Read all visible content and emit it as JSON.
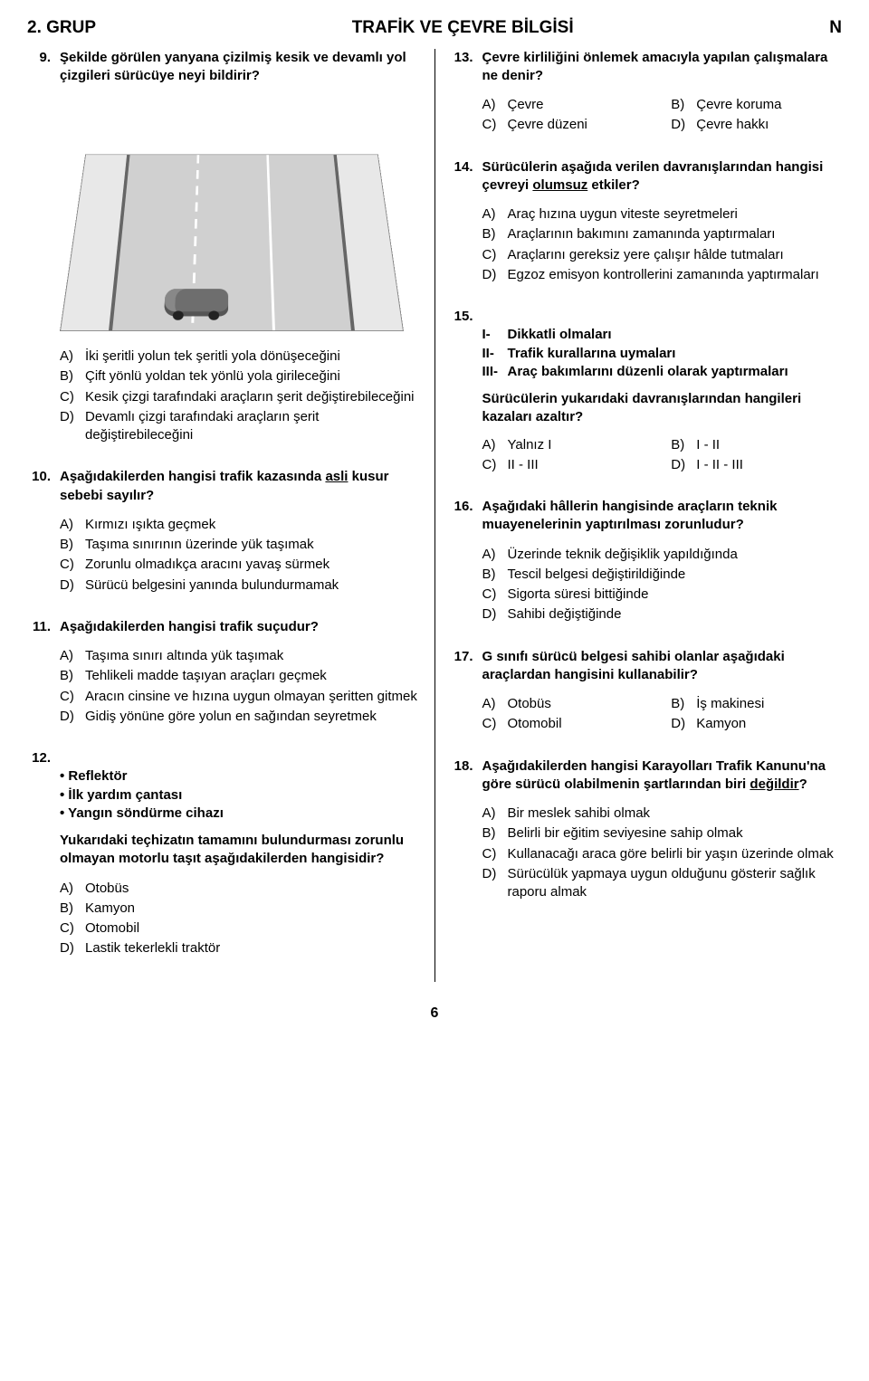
{
  "header": {
    "group": "2. GRUP",
    "title": "TRAFİK VE ÇEVRE BİLGİSİ",
    "code": "N"
  },
  "page_number": "6",
  "q9": {
    "num": "9.",
    "stem": "Şekilde görülen yanyana çizilmiş kesik ve devamlı yol çizgileri sürücüye neyi bildirir?",
    "A": "İki şeritli yolun tek şeritli yola dönüşeceğini",
    "B": "Çift yönlü yoldan tek yönlü yola girileceğini",
    "C": "Kesik çizgi tarafındaki araçların şerit değiştirebileceğini",
    "D": "Devamlı çizgi tarafındaki araçların şerit değiştirebileceğini"
  },
  "q10": {
    "num": "10.",
    "stem_pre": "Aşağıdakilerden hangisi trafik kazasında ",
    "stem_u": "asli",
    "stem_post": " kusur sebebi sayılır?",
    "A": "Kırmızı ışıkta geçmek",
    "B": "Taşıma sınırının üzerinde yük taşımak",
    "C": "Zorunlu olmadıkça aracını yavaş sürmek",
    "D": "Sürücü belgesini yanında bulundurmamak"
  },
  "q11": {
    "num": "11.",
    "stem": "Aşağıdakilerden hangisi trafik suçudur?",
    "A": "Taşıma sınırı altında yük taşımak",
    "B": "Tehlikeli madde taşıyan araçları geçmek",
    "C": "Aracın cinsine ve hızına uygun olmayan şeritten gitmek",
    "D": "Gidiş yönüne göre yolun en sağından seyretmek"
  },
  "q12": {
    "num": "12.",
    "b1": "Reflektör",
    "b2": "İlk yardım çantası",
    "b3": "Yangın söndürme cihazı",
    "follow_pre": "Yukarıdaki teçhizatın ",
    "follow_u1": "tamamını",
    "follow_mid": " bulundurması zorunlu ",
    "follow_u2": "olmayan",
    "follow_post": " motorlu taşıt aşağıdakilerden hangisidir?",
    "A": "Otobüs",
    "B": "Kamyon",
    "C": "Otomobil",
    "D": "Lastik tekerlekli traktör"
  },
  "q13": {
    "num": "13.",
    "stem": "Çevre kirliliğini önlemek amacıyla yapılan çalışmalara ne denir?",
    "A": "Çevre",
    "B": "Çevre koruma",
    "C": "Çevre düzeni",
    "D": "Çevre hakkı"
  },
  "q14": {
    "num": "14.",
    "stem_pre": "Sürücülerin aşağıda verilen davranışlarından hangisi çevreyi ",
    "stem_u": "olumsuz",
    "stem_post": " etkiler?",
    "A": "Araç hızına uygun viteste seyretmeleri",
    "B": "Araçlarının bakımını zamanında yaptırmaları",
    "C": "Araçlarını gereksiz yere çalışır hâlde tutmaları",
    "D": "Egzoz emisyon kontrollerini zamanında yaptırmaları"
  },
  "q15": {
    "num": "15.",
    "r1n": "I-",
    "r1": "Dikkatli olmaları",
    "r2n": "II-",
    "r2": "Trafik kurallarına uymaları",
    "r3n": "III-",
    "r3": "Araç bakımlarını düzenli olarak yaptırmaları",
    "follow": "Sürücülerin yukarıdaki davranışlarından hangileri kazaları azaltır?",
    "A": "Yalnız I",
    "B": "I - II",
    "C": "II - III",
    "D": "I - II - III"
  },
  "q16": {
    "num": "16.",
    "stem": "Aşağıdaki hâllerin hangisinde araçların teknik muayenelerinin yaptırılması zorunludur?",
    "A": "Üzerinde teknik değişiklik yapıldığında",
    "B": "Tescil belgesi değiştirildiğinde",
    "C": "Sigorta süresi bittiğinde",
    "D": "Sahibi değiştiğinde"
  },
  "q17": {
    "num": "17.",
    "stem": "G sınıfı sürücü belgesi sahibi olanlar aşağıdaki araçlardan hangisini kullanabilir?",
    "A": "Otobüs",
    "B": "İş makinesi",
    "C": "Otomobil",
    "D": "Kamyon"
  },
  "q18": {
    "num": "18.",
    "stem_pre": "Aşağıdakilerden hangisi Karayolları Trafik Kanunu'na göre sürücü olabilmenin şartlarından biri ",
    "stem_u": "değildir",
    "stem_post": "?",
    "A": "Bir meslek sahibi olmak",
    "B": "Belirli bir eğitim seviyesine sahip olmak",
    "C": "Kullanacağı araca göre belirli bir yaşın üzerinde olmak",
    "D": "Sürücülük yapmaya uygun olduğunu gösterir sağlık raporu almak"
  }
}
